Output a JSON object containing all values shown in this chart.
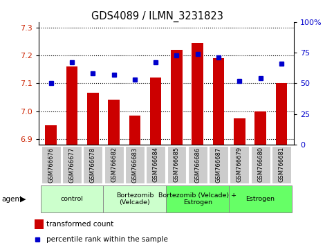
{
  "title": "GDS4089 / ILMN_3231823",
  "samples": [
    "GSM766676",
    "GSM766677",
    "GSM766678",
    "GSM766682",
    "GSM766683",
    "GSM766684",
    "GSM766685",
    "GSM766686",
    "GSM766687",
    "GSM766679",
    "GSM766680",
    "GSM766681"
  ],
  "red_values": [
    6.95,
    7.16,
    7.065,
    7.04,
    6.985,
    7.12,
    7.22,
    7.245,
    7.19,
    6.975,
    7.0,
    7.1
  ],
  "blue_values": [
    50,
    67,
    58,
    57,
    53,
    67,
    73,
    74,
    71,
    52,
    54,
    66
  ],
  "ylim_left": [
    6.88,
    7.32
  ],
  "ylim_right": [
    0,
    100
  ],
  "yticks_left": [
    6.9,
    7.0,
    7.1,
    7.2,
    7.3
  ],
  "yticks_right": [
    0,
    25,
    50,
    75,
    100
  ],
  "ytick_labels_right": [
    "0",
    "25",
    "50",
    "75",
    "100%"
  ],
  "groups": [
    {
      "label": "control",
      "start": 0,
      "end": 3,
      "color": "#ccffcc"
    },
    {
      "label": "Bortezomib\n(Velcade)",
      "start": 3,
      "end": 6,
      "color": "#ccffcc"
    },
    {
      "label": "Bortezomib (Velcade) +\nEstrogen",
      "start": 6,
      "end": 9,
      "color": "#66ff66"
    },
    {
      "label": "Estrogen",
      "start": 9,
      "end": 12,
      "color": "#66ff66"
    }
  ],
  "bar_color": "#cc0000",
  "dot_color": "#0000cc",
  "background_color": "#ffffff",
  "axis_label_color_left": "#cc2200",
  "axis_label_color_right": "#0000cc",
  "grid_color": "#000000",
  "tick_bg_color": "#cccccc",
  "group_border_color": "#888888"
}
